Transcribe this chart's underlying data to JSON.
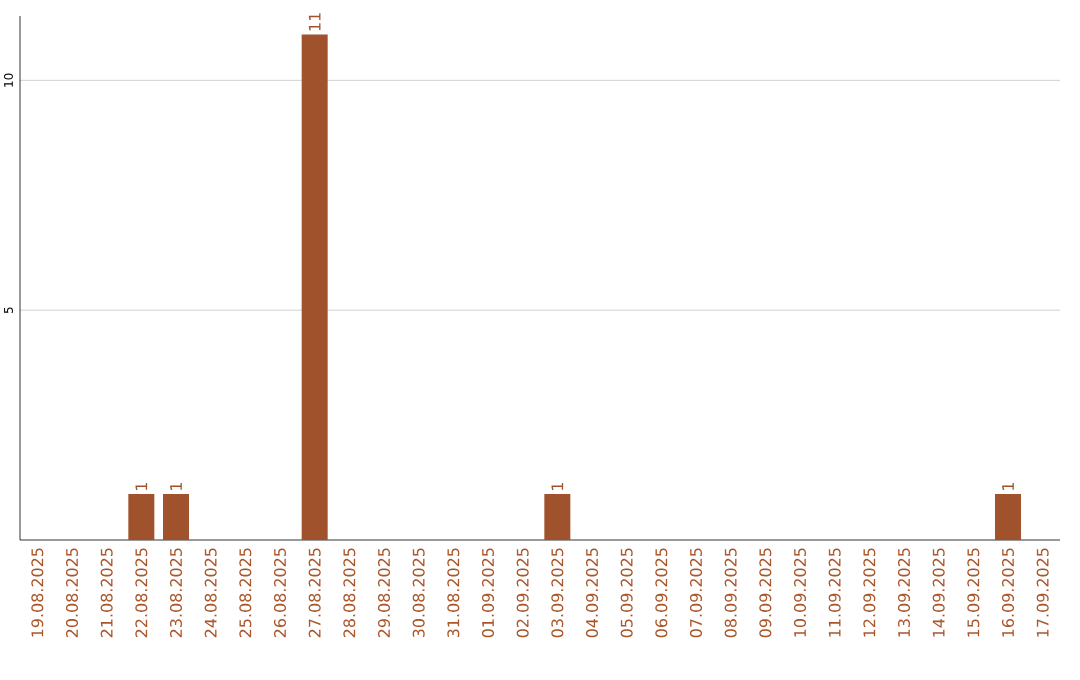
{
  "chart_data": {
    "type": "bar",
    "categories": [
      "19.08.2025",
      "20.08.2025",
      "21.08.2025",
      "22.08.2025",
      "23.08.2025",
      "24.08.2025",
      "25.08.2025",
      "26.08.2025",
      "27.08.2025",
      "28.08.2025",
      "29.08.2025",
      "30.08.2025",
      "31.08.2025",
      "01.09.2025",
      "02.09.2025",
      "03.09.2025",
      "04.09.2025",
      "05.09.2025",
      "06.09.2025",
      "07.09.2025",
      "08.09.2025",
      "09.09.2025",
      "10.09.2025",
      "11.09.2025",
      "12.09.2025",
      "13.09.2025",
      "14.09.2025",
      "15.09.2025",
      "16.09.2025",
      "17.09.2025"
    ],
    "values": [
      0,
      0,
      0,
      1,
      1,
      0,
      0,
      0,
      11,
      0,
      0,
      0,
      0,
      0,
      0,
      1,
      0,
      0,
      0,
      0,
      0,
      0,
      0,
      0,
      0,
      0,
      0,
      0,
      1,
      0
    ],
    "value_labels": [
      null,
      null,
      null,
      "1",
      "1",
      null,
      null,
      null,
      "11",
      null,
      null,
      null,
      null,
      null,
      null,
      "1",
      null,
      null,
      null,
      null,
      null,
      null,
      null,
      null,
      null,
      null,
      null,
      null,
      "1",
      null
    ],
    "color": "#a0522d",
    "ylim": [
      0,
      11.4
    ],
    "yticks": [
      5,
      10
    ],
    "grid": "y"
  }
}
